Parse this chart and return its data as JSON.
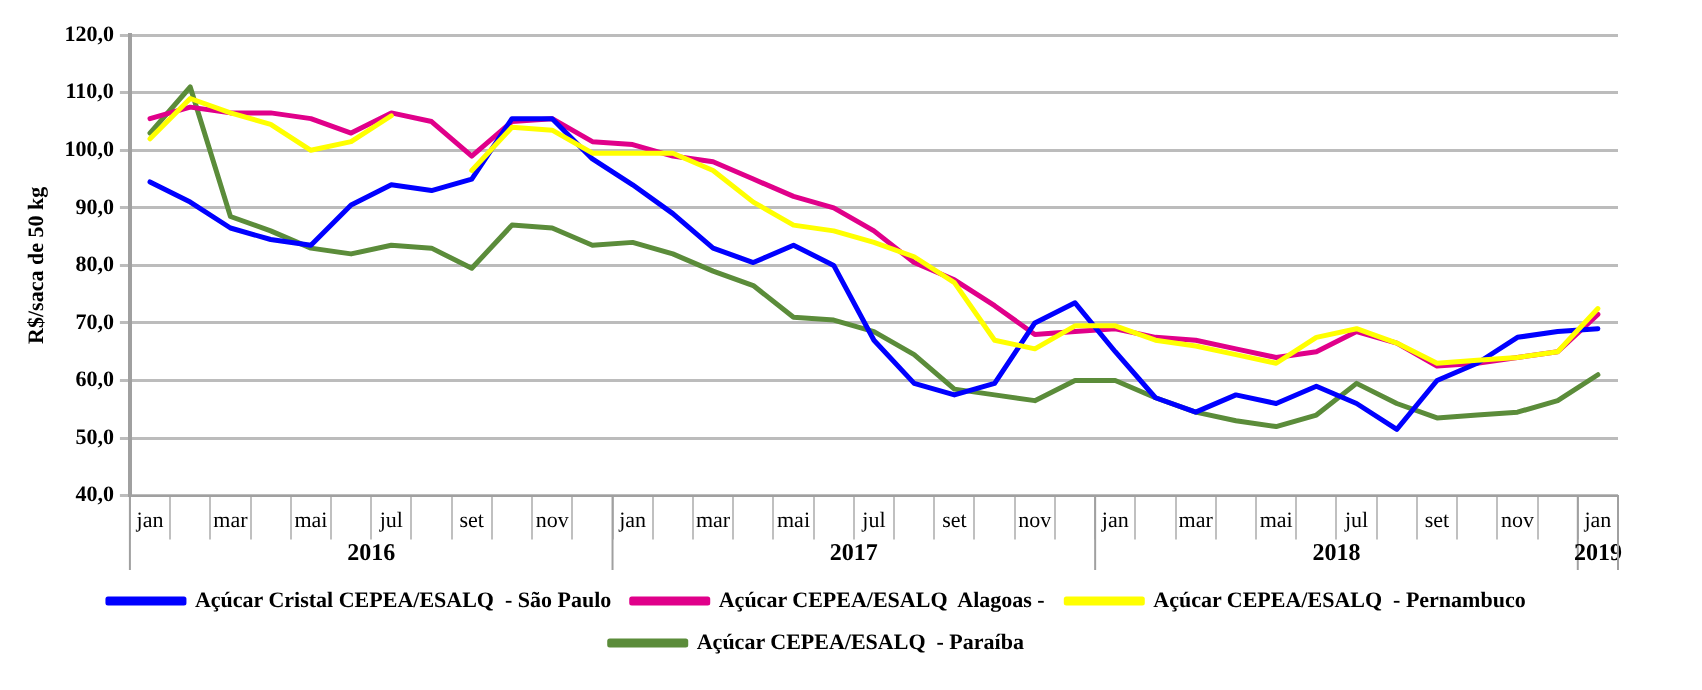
{
  "chart_data": {
    "type": "line",
    "ylabel": "R$/saca de 50 kg",
    "categories": [
      "jan",
      null,
      "mar",
      null,
      "mai",
      null,
      "jul",
      null,
      "set",
      null,
      "nov",
      null,
      "jan",
      null,
      "mar",
      null,
      "mai",
      null,
      "jul",
      null,
      "set",
      null,
      "nov",
      null,
      "jan",
      null,
      "mar",
      null,
      "mai",
      null,
      "jul",
      null,
      "set",
      null,
      "nov",
      null,
      "jan"
    ],
    "annotations": [
      "2016",
      "2017",
      "2018",
      "2019"
    ],
    "ylim": [
      40,
      120
    ],
    "yticks": [
      {
        "value": 40,
        "label": "40,0"
      },
      {
        "value": 50,
        "label": "50,0"
      },
      {
        "value": 60,
        "label": "60,0"
      },
      {
        "value": 70,
        "label": "70,0"
      },
      {
        "value": 80,
        "label": "80,0"
      },
      {
        "value": 90,
        "label": "90,0"
      },
      {
        "value": 100,
        "label": "100,0"
      },
      {
        "value": 110,
        "label": "110,0"
      },
      {
        "value": 120,
        "label": "120,0"
      }
    ],
    "grid": "y",
    "legend": "bottom",
    "marker": "none",
    "line_style": "solid",
    "series": [
      {
        "name": "Açúcar Cristal CEPEA/ESALQ  - São Paulo",
        "color": "#0000ff",
        "values": [
          94.5,
          91,
          86.5,
          84.5,
          83.5,
          90.5,
          94,
          93,
          95,
          105.5,
          105.5,
          98.5,
          94,
          89,
          83,
          80.5,
          83.5,
          80,
          67,
          59.5,
          57.5,
          59.5,
          70,
          73.5,
          65,
          57,
          54.5,
          57.5,
          56,
          59,
          56,
          51.5,
          60,
          63,
          67.5,
          68.5,
          69
        ]
      },
      {
        "name": "Açúcar CEPEA/ESALQ  Alagoas -",
        "color": "#e0008a",
        "values": [
          105.5,
          107.5,
          106.5,
          106.5,
          105.5,
          103,
          106.5,
          105,
          99,
          105,
          105.5,
          101.5,
          101,
          99,
          98,
          95,
          92,
          90,
          86,
          80.5,
          77.5,
          73,
          68,
          68.5,
          69,
          67.5,
          67,
          65.5,
          64,
          65,
          68.5,
          66.5,
          62.5,
          63,
          64,
          65,
          71.5
        ]
      },
      {
        "name": "Açúcar CEPEA/ESALQ  - Pernambuco",
        "color": "#ffff00",
        "values": [
          102,
          109,
          106.5,
          104.5,
          100,
          101.5,
          106,
          null,
          96.5,
          104,
          103.5,
          99.5,
          99.5,
          99.5,
          96.5,
          91,
          87,
          86,
          84,
          81.5,
          77,
          67,
          65.5,
          69.5,
          69.5,
          67,
          66,
          64.5,
          63,
          67.5,
          69,
          66.5,
          63,
          63.5,
          64,
          65,
          72.5
        ]
      },
      {
        "name": "Açúcar CEPEA/ESALQ  - Paraíba",
        "color": "#5b8c3a",
        "values": [
          103,
          111,
          88.5,
          86,
          83,
          82,
          83.5,
          83,
          79.5,
          87,
          86.5,
          83.5,
          84,
          82,
          79,
          76.5,
          71,
          70.5,
          68.5,
          64.5,
          58.5,
          57.5,
          56.5,
          60,
          60,
          57,
          54.5,
          53,
          52,
          54,
          59.5,
          56,
          53.5,
          54,
          54.5,
          56.5,
          61
        ]
      }
    ]
  }
}
